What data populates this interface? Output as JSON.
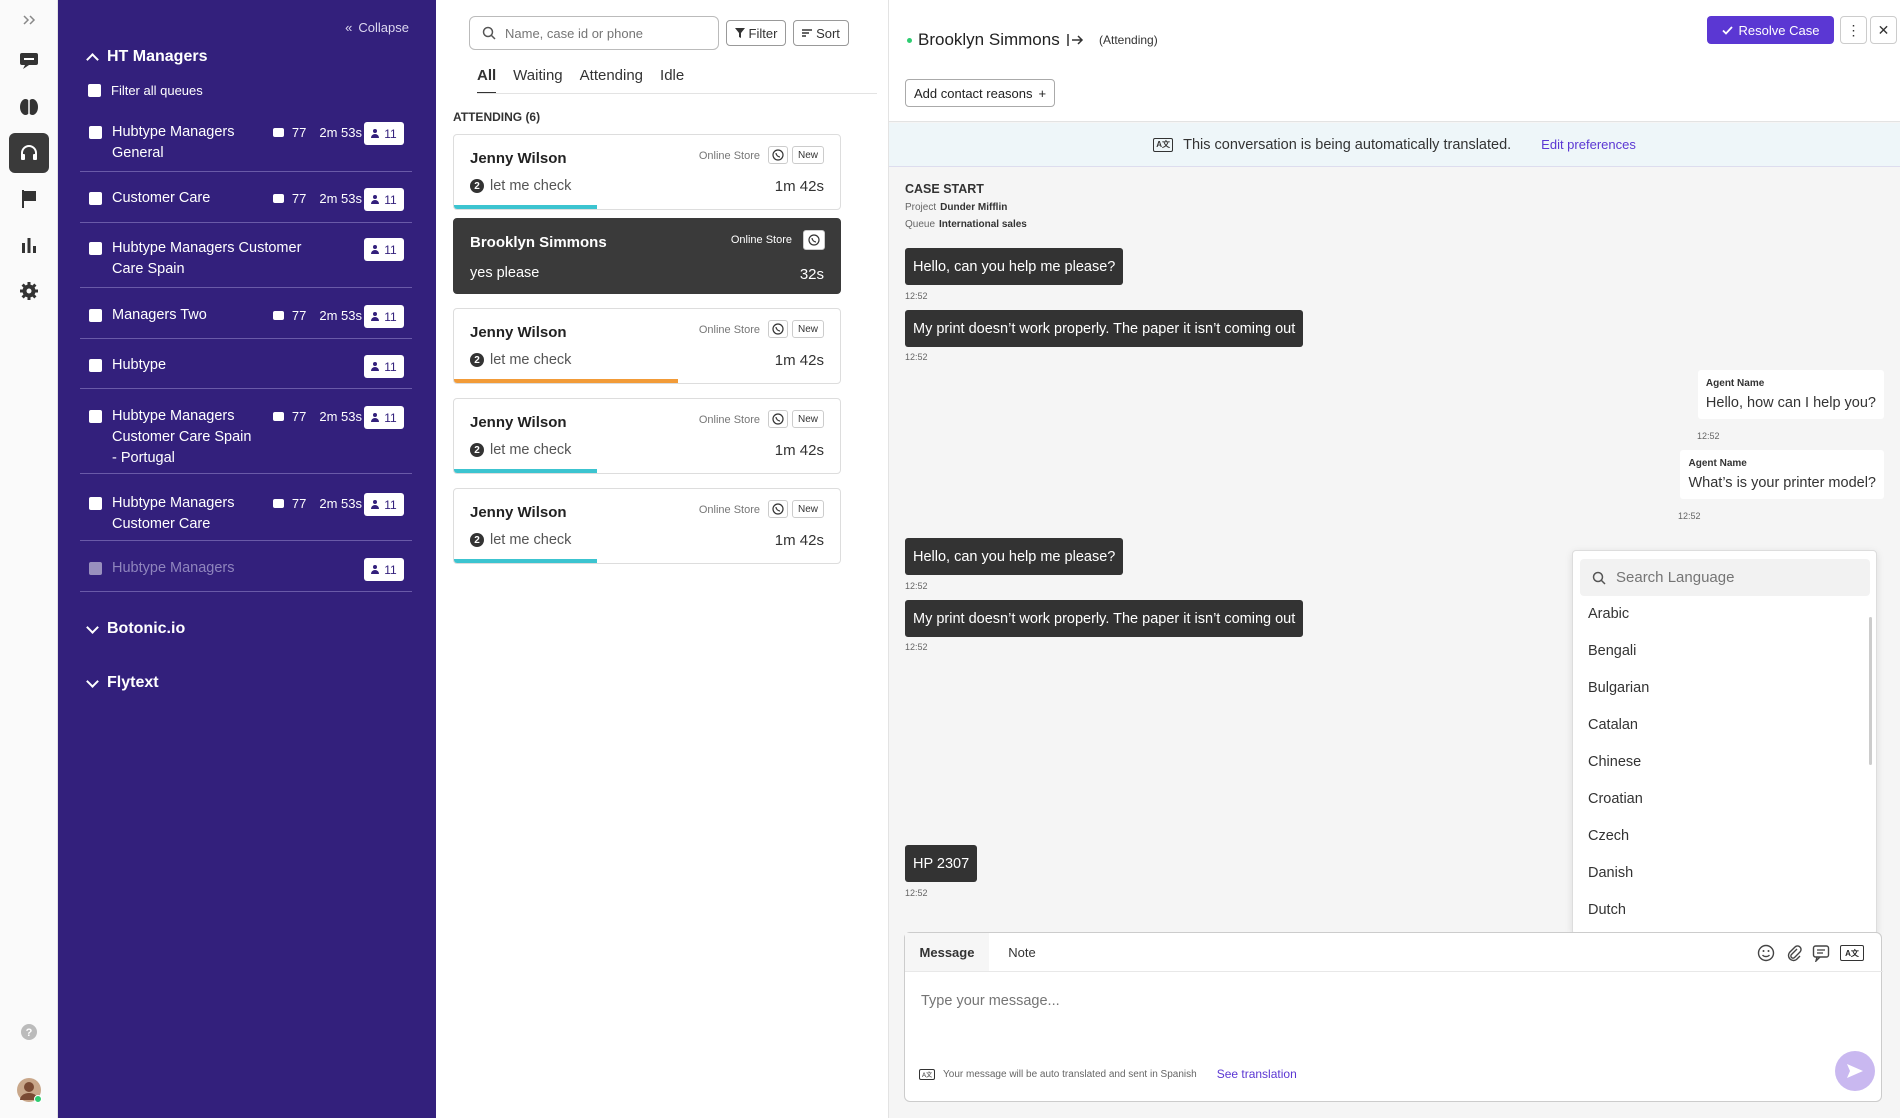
{
  "rail": {
    "icons": [
      "expand-icon",
      "chat-icon",
      "brain-icon",
      "headset-icon",
      "flag-icon",
      "bar-chart-icon",
      "settings-icon",
      "help-icon",
      "user-avatar"
    ]
  },
  "queues": {
    "collapse_label": "Collapse",
    "groups": [
      {
        "title": "HT Managers"
      },
      {
        "title": "Botonic.io"
      },
      {
        "title": "Flytext"
      }
    ],
    "filter_all": "Filter all queues",
    "items": [
      {
        "name": "Hubtype Managers General",
        "msgs": "77",
        "time": "2m 53s",
        "agents": "11"
      },
      {
        "name": "Customer Care",
        "msgs": "77",
        "time": "2m 53s",
        "agents": "11"
      },
      {
        "name": "Hubtype Managers Customer Care Spain",
        "agents": "11"
      },
      {
        "name": "Managers Two",
        "msgs": "77",
        "time": "2m 53s",
        "agents": "11"
      },
      {
        "name": "Hubtype",
        "agents": "11"
      },
      {
        "name": "Hubtype Managers Customer Care Spain - Portugal",
        "msgs": "77",
        "time": "2m 53s",
        "agents": "11"
      },
      {
        "name": "Hubtype Managers Customer Care",
        "msgs": "77",
        "time": "2m 53s",
        "agents": "11"
      },
      {
        "name": "Hubtype Managers",
        "agents": "11"
      }
    ]
  },
  "list": {
    "search_placeholder": "Name, case id or phone",
    "filter_label": "Filter",
    "sort_label": "Sort",
    "tabs": [
      "All",
      "Waiting",
      "Attending",
      "Idle"
    ],
    "section": "ATTENDING (6)",
    "cards": [
      {
        "name": "Jenny Wilson",
        "store": "Online Store",
        "badge": "New",
        "unread": "2",
        "last": "let me check",
        "time": "1m 42s",
        "progress": 0.37,
        "color": "#3cc4d0"
      },
      {
        "name": "Brooklyn Simmons",
        "store": "Online Store",
        "last": "yes please",
        "time": "32s"
      },
      {
        "name": "Jenny Wilson",
        "store": "Online Store",
        "badge": "New",
        "unread": "2",
        "last": "let me check",
        "time": "1m 42s",
        "progress": 0.58,
        "color": "#f29b38"
      },
      {
        "name": "Jenny Wilson",
        "store": "Online Store",
        "badge": "New",
        "unread": "2",
        "last": "let me check",
        "time": "1m 42s",
        "progress": 0.37,
        "color": "#3cc4d0"
      },
      {
        "name": "Jenny Wilson",
        "store": "Online Store",
        "badge": "New",
        "unread": "2",
        "last": "let me check",
        "time": "1m 42s",
        "progress": 0.37,
        "color": "#3cc4d0"
      }
    ]
  },
  "conversation": {
    "name": "Brooklyn Simmons",
    "status": "(Attending)",
    "resolve_label": "Resolve Case",
    "add_reasons": "Add contact reasons",
    "translation_notice": "This conversation is being automatically translated.",
    "edit_prefs": "Edit preferences",
    "case_start": "CASE START",
    "project_label": "Project",
    "project": "Dunder Mifflin",
    "queue_label": "Queue",
    "queue": "International sales",
    "messages": [
      {
        "text": "Hello, can you help me please?",
        "time": "12:52"
      },
      {
        "text": "My print doesn’t work properly. The paper it isn’t coming out",
        "time": "12:52"
      },
      {
        "agent": "Agent Name",
        "text": "Hello, how can I help you?",
        "time": "12:52"
      },
      {
        "agent": "Agent Name",
        "text": "What’s is your printer model?",
        "time": "12:52"
      },
      {
        "text": "Hello, can you help me please?",
        "time": "12:52"
      },
      {
        "text": "My print doesn’t work properly. The paper it isn’t coming out",
        "time": "12:52"
      },
      {
        "text": "HP 2307",
        "time": "12:52"
      }
    ],
    "language_search_placeholder": "Search Language",
    "languages": [
      "Arabic",
      "Bengali",
      "Bulgarian",
      "Catalan",
      "Chinese",
      "Croatian",
      "Czech",
      "Danish",
      "Dutch"
    ],
    "composer": {
      "tab_message": "Message",
      "tab_note": "Note",
      "placeholder": "Type your message...",
      "auto_note": "Your message will be auto translated and sent in Spanish",
      "see_translation": "See translation"
    }
  }
}
